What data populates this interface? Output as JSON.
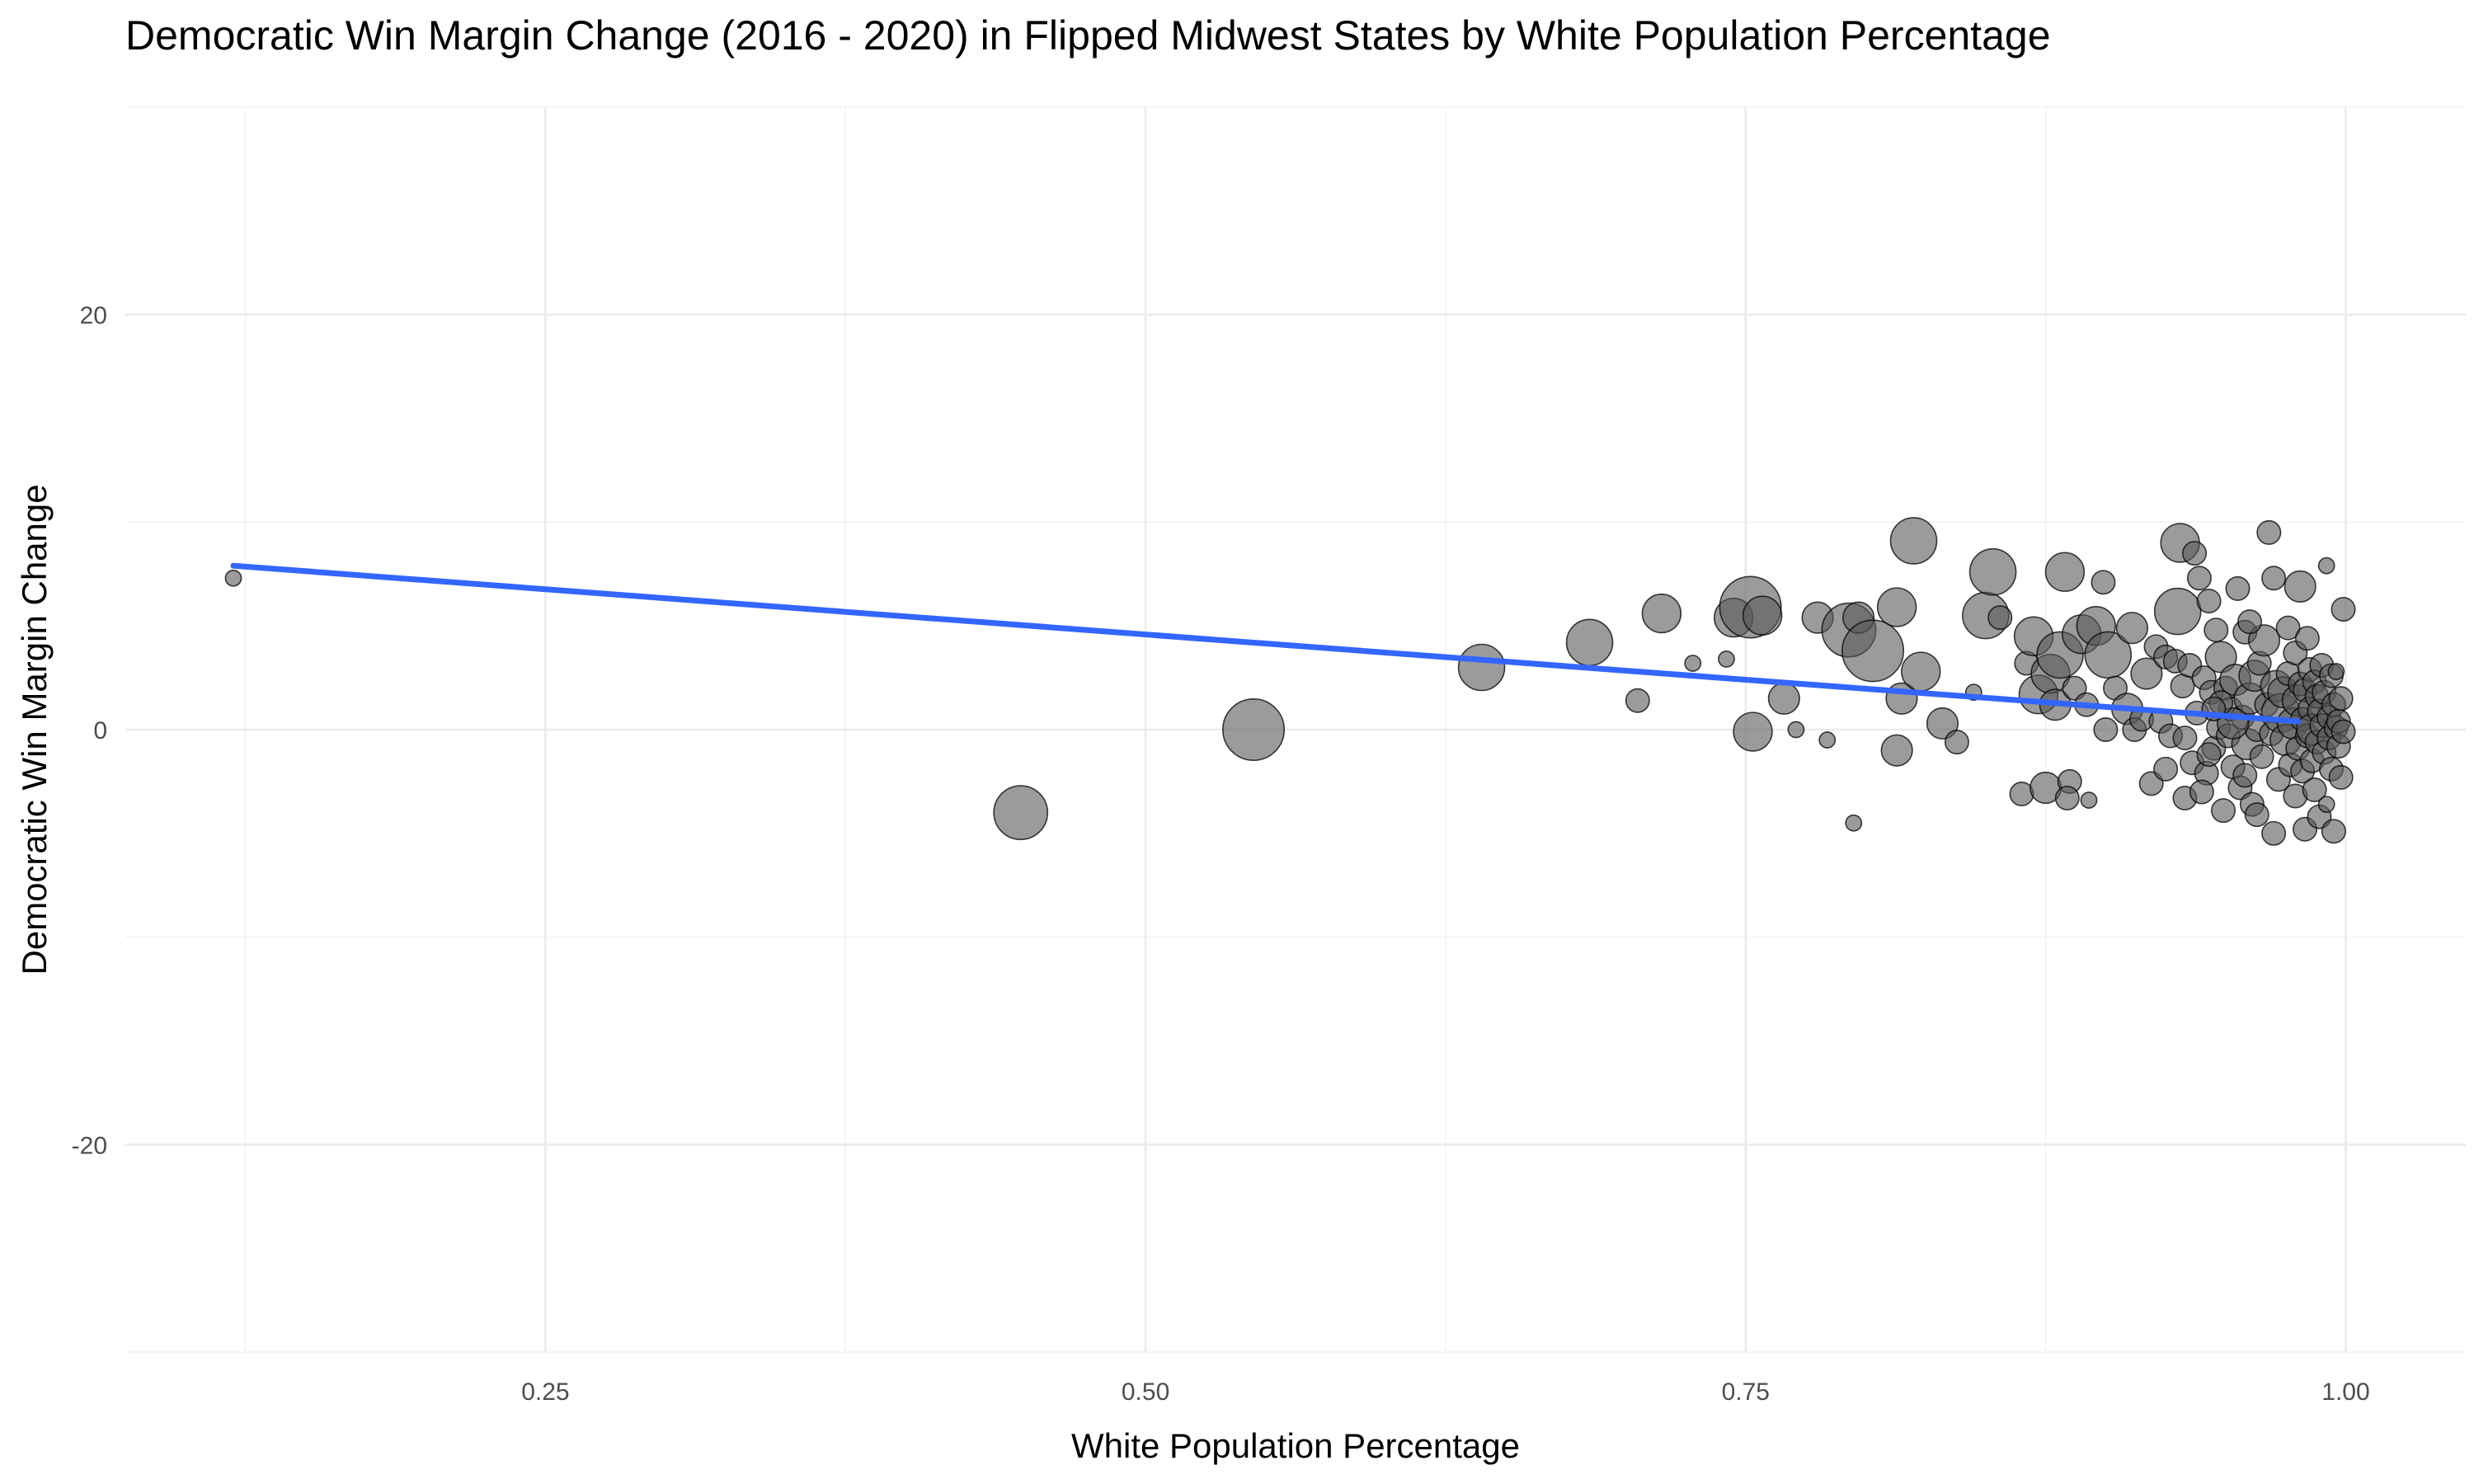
{
  "chart_data": {
    "type": "scatter",
    "title": "Democratic Win Margin Change (2016 - 2020) in Flipped Midwest States by White Population Percentage",
    "xlabel": "White Population Percentage",
    "ylabel": "Democratic Win Margin Change",
    "xlim": [
      0.075,
      1.05
    ],
    "ylim": [
      -30,
      30
    ],
    "x_ticks": [
      {
        "value": 0.25,
        "label": "0.25"
      },
      {
        "value": 0.5,
        "label": "0.50"
      },
      {
        "value": 0.75,
        "label": "0.75"
      },
      {
        "value": 1.0,
        "label": "1.00"
      }
    ],
    "y_ticks": [
      {
        "value": -20,
        "label": "-20"
      },
      {
        "value": 0,
        "label": "0"
      },
      {
        "value": 20,
        "label": "20"
      }
    ],
    "x_minor": [
      0.125,
      0.375,
      0.625,
      0.875
    ],
    "y_minor": [
      -30,
      -10,
      10,
      30
    ],
    "grid": true,
    "legend": "none",
    "point_color": "#595959",
    "trend_color": "#3366ff",
    "trend_line": {
      "x": [
        0.12,
        0.98
      ],
      "y": [
        7.9,
        0.4
      ]
    },
    "size_note": "point size proportional to relative magnitude (1-7)",
    "points": [
      {
        "x": 0.12,
        "y": 7.3,
        "s": 1
      },
      {
        "x": 0.448,
        "y": -4.0,
        "s": 6
      },
      {
        "x": 0.545,
        "y": 0.0,
        "s": 7
      },
      {
        "x": 0.64,
        "y": 3.0,
        "s": 5
      },
      {
        "x": 0.685,
        "y": 4.2,
        "s": 5
      },
      {
        "x": 0.705,
        "y": 1.4,
        "s": 2
      },
      {
        "x": 0.715,
        "y": 5.6,
        "s": 4
      },
      {
        "x": 0.728,
        "y": 3.2,
        "s": 1
      },
      {
        "x": 0.742,
        "y": 3.4,
        "s": 1
      },
      {
        "x": 0.745,
        "y": 5.4,
        "s": 4
      },
      {
        "x": 0.752,
        "y": 5.9,
        "s": 7
      },
      {
        "x": 0.757,
        "y": 5.5,
        "s": 4
      },
      {
        "x": 0.753,
        "y": -0.1,
        "s": 4
      },
      {
        "x": 0.766,
        "y": 1.5,
        "s": 3
      },
      {
        "x": 0.78,
        "y": 5.4,
        "s": 3
      },
      {
        "x": 0.771,
        "y": 0.0,
        "s": 1
      },
      {
        "x": 0.784,
        "y": -0.5,
        "s": 1
      },
      {
        "x": 0.793,
        "y": 4.8,
        "s": 6
      },
      {
        "x": 0.797,
        "y": 5.4,
        "s": 3
      },
      {
        "x": 0.803,
        "y": 3.8,
        "s": 7
      },
      {
        "x": 0.795,
        "y": -4.5,
        "s": 1
      },
      {
        "x": 0.813,
        "y": 5.9,
        "s": 4
      },
      {
        "x": 0.815,
        "y": 1.5,
        "s": 3
      },
      {
        "x": 0.82,
        "y": 9.1,
        "s": 5
      },
      {
        "x": 0.823,
        "y": 2.8,
        "s": 4
      },
      {
        "x": 0.813,
        "y": -1.0,
        "s": 3
      },
      {
        "x": 0.832,
        "y": 0.3,
        "s": 3
      },
      {
        "x": 0.838,
        "y": -0.6,
        "s": 2
      },
      {
        "x": 0.845,
        "y": 1.8,
        "s": 1
      },
      {
        "x": 0.85,
        "y": 5.5,
        "s": 5
      },
      {
        "x": 0.853,
        "y": 7.6,
        "s": 5
      },
      {
        "x": 0.856,
        "y": 5.4,
        "s": 2
      },
      {
        "x": 0.865,
        "y": -3.1,
        "s": 2
      },
      {
        "x": 0.867,
        "y": 3.2,
        "s": 2
      },
      {
        "x": 0.87,
        "y": 4.5,
        "s": 4
      },
      {
        "x": 0.872,
        "y": 1.7,
        "s": 4
      },
      {
        "x": 0.875,
        "y": -2.8,
        "s": 3
      },
      {
        "x": 0.877,
        "y": 2.7,
        "s": 4
      },
      {
        "x": 0.879,
        "y": 1.2,
        "s": 3
      },
      {
        "x": 0.881,
        "y": 3.6,
        "s": 5
      },
      {
        "x": 0.883,
        "y": 7.6,
        "s": 4
      },
      {
        "x": 0.885,
        "y": -2.5,
        "s": 2
      },
      {
        "x": 0.884,
        "y": -3.3,
        "s": 2
      },
      {
        "x": 0.887,
        "y": 2.0,
        "s": 2
      },
      {
        "x": 0.89,
        "y": 4.6,
        "s": 4
      },
      {
        "x": 0.892,
        "y": 1.2,
        "s": 2
      },
      {
        "x": 0.893,
        "y": -3.4,
        "s": 1
      },
      {
        "x": 0.896,
        "y": 5.0,
        "s": 4
      },
      {
        "x": 0.899,
        "y": 7.1,
        "s": 2
      },
      {
        "x": 0.901,
        "y": 3.6,
        "s": 5
      },
      {
        "x": 0.9,
        "y": 0.0,
        "s": 2
      },
      {
        "x": 0.904,
        "y": 2.0,
        "s": 2
      },
      {
        "x": 0.909,
        "y": 1.0,
        "s": 3
      },
      {
        "x": 0.911,
        "y": 4.9,
        "s": 3
      },
      {
        "x": 0.912,
        "y": 0.0,
        "s": 2
      },
      {
        "x": 0.915,
        "y": 0.5,
        "s": 2
      },
      {
        "x": 0.917,
        "y": 2.7,
        "s": 3
      },
      {
        "x": 0.919,
        "y": -2.6,
        "s": 2
      },
      {
        "x": 0.921,
        "y": 4.0,
        "s": 2
      },
      {
        "x": 0.923,
        "y": 0.4,
        "s": 2
      },
      {
        "x": 0.925,
        "y": 3.5,
        "s": 2
      },
      {
        "x": 0.927,
        "y": -0.3,
        "s": 2
      },
      {
        "x": 0.929,
        "y": 3.3,
        "s": 2
      },
      {
        "x": 0.93,
        "y": 5.7,
        "s": 5
      },
      {
        "x": 0.932,
        "y": 2.1,
        "s": 2
      },
      {
        "x": 0.931,
        "y": 9.0,
        "s": 4
      },
      {
        "x": 0.933,
        "y": -3.3,
        "s": 2
      },
      {
        "x": 0.935,
        "y": 3.1,
        "s": 2
      },
      {
        "x": 0.937,
        "y": 8.5,
        "s": 2
      },
      {
        "x": 0.936,
        "y": -1.6,
        "s": 2
      },
      {
        "x": 0.939,
        "y": 7.3,
        "s": 2
      },
      {
        "x": 0.941,
        "y": 2.5,
        "s": 2
      },
      {
        "x": 0.942,
        "y": -2.1,
        "s": 2
      },
      {
        "x": 0.943,
        "y": 6.2,
        "s": 2
      },
      {
        "x": 0.944,
        "y": 1.8,
        "s": 2
      },
      {
        "x": 0.945,
        "y": -0.9,
        "s": 2
      },
      {
        "x": 0.946,
        "y": 4.8,
        "s": 2
      },
      {
        "x": 0.947,
        "y": 0.1,
        "s": 2
      },
      {
        "x": 0.948,
        "y": 3.5,
        "s": 3
      },
      {
        "x": 0.949,
        "y": -3.9,
        "s": 2
      },
      {
        "x": 0.95,
        "y": 2.0,
        "s": 2
      },
      {
        "x": 0.951,
        "y": -0.3,
        "s": 2
      },
      {
        "x": 0.952,
        "y": 1.0,
        "s": 2
      },
      {
        "x": 0.953,
        "y": -1.8,
        "s": 2
      },
      {
        "x": 0.954,
        "y": 2.4,
        "s": 3
      },
      {
        "x": 0.955,
        "y": 6.8,
        "s": 2
      },
      {
        "x": 0.956,
        "y": -2.8,
        "s": 2
      },
      {
        "x": 0.957,
        "y": 0.6,
        "s": 2
      },
      {
        "x": 0.958,
        "y": 4.7,
        "s": 2
      },
      {
        "x": 0.959,
        "y": -0.7,
        "s": 3
      },
      {
        "x": 0.96,
        "y": 1.5,
        "s": 3
      },
      {
        "x": 0.961,
        "y": -3.6,
        "s": 2
      },
      {
        "x": 0.962,
        "y": 2.6,
        "s": 3
      },
      {
        "x": 0.963,
        "y": 0.0,
        "s": 2
      },
      {
        "x": 0.964,
        "y": 3.2,
        "s": 2
      },
      {
        "x": 0.965,
        "y": -1.3,
        "s": 2
      },
      {
        "x": 0.966,
        "y": 4.3,
        "s": 3
      },
      {
        "x": 0.967,
        "y": 1.2,
        "s": 2
      },
      {
        "x": 0.968,
        "y": 9.5,
        "s": 2
      },
      {
        "x": 0.969,
        "y": -0.2,
        "s": 2
      },
      {
        "x": 0.97,
        "y": 7.3,
        "s": 2
      },
      {
        "x": 0.971,
        "y": 2.1,
        "s": 3
      },
      {
        "x": 0.972,
        "y": -2.4,
        "s": 2
      },
      {
        "x": 0.973,
        "y": 0.8,
        "s": 4
      },
      {
        "x": 0.974,
        "y": 1.8,
        "s": 3
      },
      {
        "x": 0.975,
        "y": -0.5,
        "s": 3
      },
      {
        "x": 0.976,
        "y": 4.9,
        "s": 2
      },
      {
        "x": 0.976,
        "y": 2.7,
        "s": 2
      },
      {
        "x": 0.977,
        "y": -1.7,
        "s": 2
      },
      {
        "x": 0.978,
        "y": 0.3,
        "s": 3
      },
      {
        "x": 0.979,
        "y": 3.7,
        "s": 2
      },
      {
        "x": 0.979,
        "y": -3.2,
        "s": 2
      },
      {
        "x": 0.98,
        "y": 1.4,
        "s": 3
      },
      {
        "x": 0.98,
        "y": -0.9,
        "s": 2
      },
      {
        "x": 0.981,
        "y": 2.2,
        "s": 2
      },
      {
        "x": 0.981,
        "y": 6.9,
        "s": 3
      },
      {
        "x": 0.982,
        "y": -2.0,
        "s": 2
      },
      {
        "x": 0.982,
        "y": 0.5,
        "s": 2
      },
      {
        "x": 0.983,
        "y": 1.9,
        "s": 2
      },
      {
        "x": 0.983,
        "y": -4.8,
        "s": 2
      },
      {
        "x": 0.984,
        "y": 4.4,
        "s": 2
      },
      {
        "x": 0.984,
        "y": -0.3,
        "s": 2
      },
      {
        "x": 0.985,
        "y": 2.9,
        "s": 2
      },
      {
        "x": 0.985,
        "y": 1.0,
        "s": 2
      },
      {
        "x": 0.986,
        "y": -1.5,
        "s": 2
      },
      {
        "x": 0.986,
        "y": 0.0,
        "s": 3
      },
      {
        "x": 0.987,
        "y": 2.3,
        "s": 2
      },
      {
        "x": 0.987,
        "y": -2.9,
        "s": 2
      },
      {
        "x": 0.988,
        "y": 1.6,
        "s": 2
      },
      {
        "x": 0.988,
        "y": -0.6,
        "s": 2
      },
      {
        "x": 0.989,
        "y": 0.9,
        "s": 2
      },
      {
        "x": 0.989,
        "y": -4.2,
        "s": 2
      },
      {
        "x": 0.99,
        "y": 3.1,
        "s": 2
      },
      {
        "x": 0.99,
        "y": 0.2,
        "s": 2
      },
      {
        "x": 0.991,
        "y": -1.1,
        "s": 2
      },
      {
        "x": 0.991,
        "y": 1.8,
        "s": 2
      },
      {
        "x": 0.992,
        "y": -3.6,
        "s": 1
      },
      {
        "x": 0.992,
        "y": 7.9,
        "s": 1
      },
      {
        "x": 0.993,
        "y": 0.6,
        "s": 2
      },
      {
        "x": 0.993,
        "y": -0.4,
        "s": 2
      },
      {
        "x": 0.994,
        "y": 2.6,
        "s": 2
      },
      {
        "x": 0.994,
        "y": -1.9,
        "s": 2
      },
      {
        "x": 0.995,
        "y": 1.2,
        "s": 2
      },
      {
        "x": 0.995,
        "y": -4.9,
        "s": 2
      },
      {
        "x": 0.996,
        "y": 0.1,
        "s": 2
      },
      {
        "x": 0.996,
        "y": 2.8,
        "s": 1
      },
      {
        "x": 0.997,
        "y": -0.8,
        "s": 2
      },
      {
        "x": 0.997,
        "y": 0.4,
        "s": 2
      },
      {
        "x": 0.998,
        "y": -2.3,
        "s": 2
      },
      {
        "x": 0.998,
        "y": 1.5,
        "s": 2
      },
      {
        "x": 0.999,
        "y": -0.1,
        "s": 2
      },
      {
        "x": 0.999,
        "y": 5.8,
        "s": 2
      },
      {
        "x": 0.97,
        "y": -5.0,
        "s": 2
      },
      {
        "x": 0.963,
        "y": -4.1,
        "s": 2
      },
      {
        "x": 0.958,
        "y": -2.2,
        "s": 2
      },
      {
        "x": 0.953,
        "y": 0.3,
        "s": 3
      },
      {
        "x": 0.948,
        "y": 1.3,
        "s": 2
      },
      {
        "x": 0.943,
        "y": -1.2,
        "s": 2
      },
      {
        "x": 0.938,
        "y": 0.8,
        "s": 2
      },
      {
        "x": 0.933,
        "y": -0.4,
        "s": 2
      },
      {
        "x": 0.925,
        "y": -1.9,
        "s": 2
      },
      {
        "x": 0.94,
        "y": -3.0,
        "s": 2
      },
      {
        "x": 0.96,
        "y": 5.2,
        "s": 2
      },
      {
        "x": 0.945,
        "y": 1.0,
        "s": 2
      }
    ]
  }
}
